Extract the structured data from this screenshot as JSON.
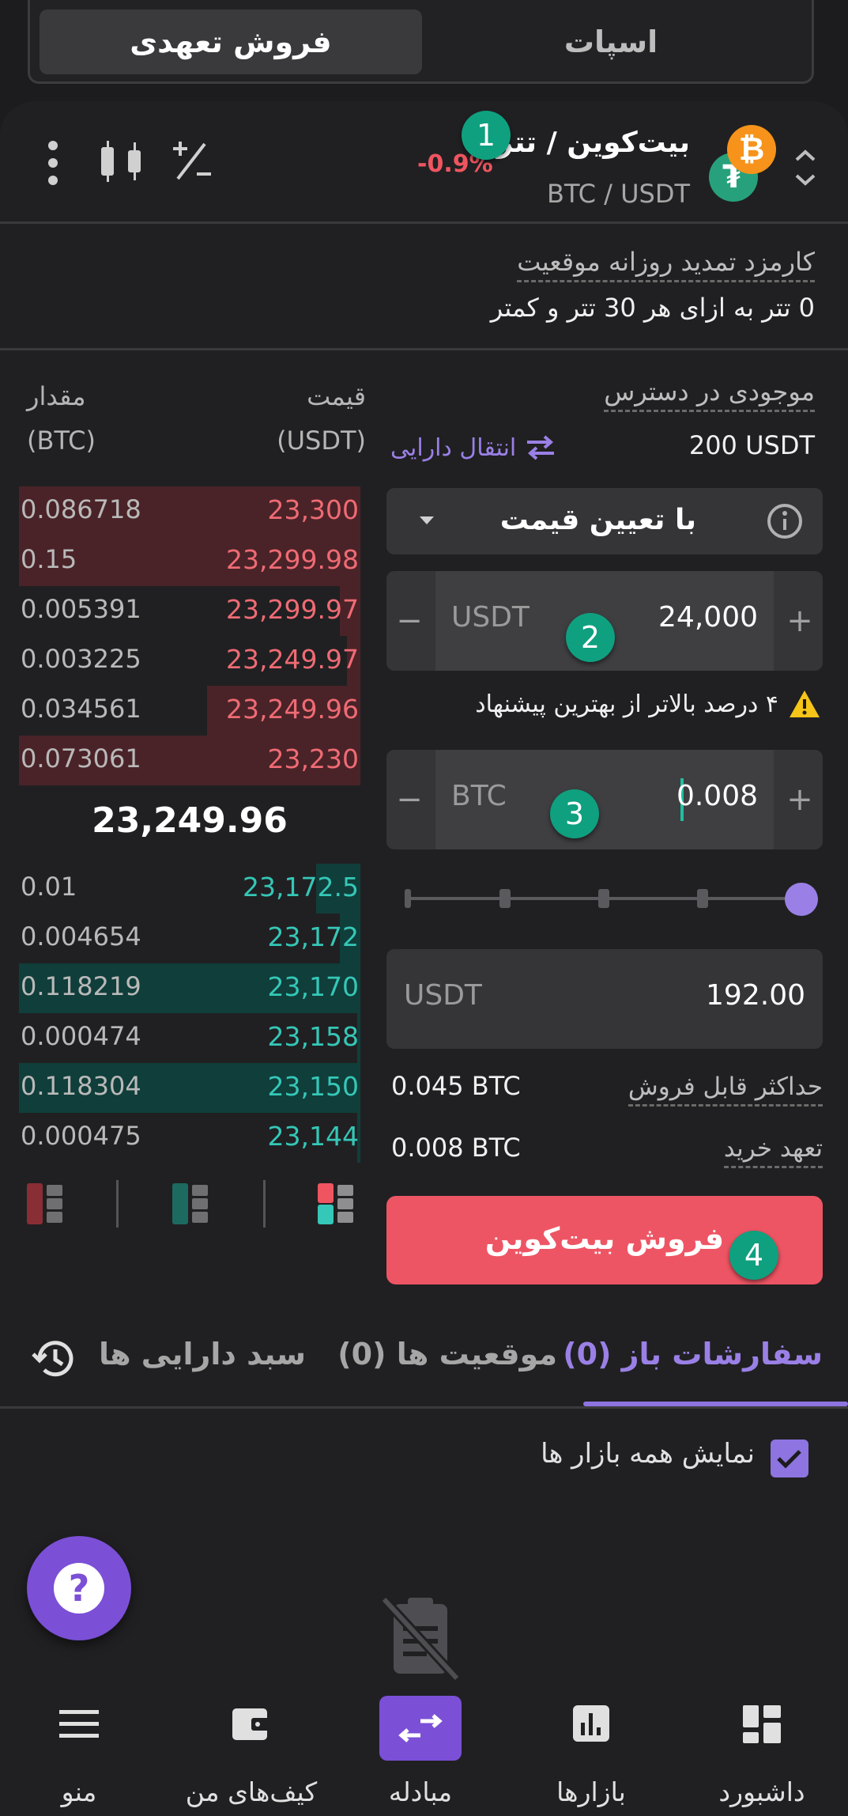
{
  "top_tabs": {
    "active": "فروش تعهدی",
    "inactive": "اسپات"
  },
  "pair": {
    "title": "بیت‌کوین / تتر",
    "subtitle": "BTC / USDT",
    "change": "-0.9%"
  },
  "badges": [
    "1",
    "2",
    "3",
    "4"
  ],
  "fee": {
    "label": "کارمزد تمدید روزانه موقعیت",
    "value": "0 تتر به ازای هر 30 تتر و کمتر"
  },
  "order_book": {
    "price_header": "قیمت",
    "price_unit": "(USDT)",
    "amount_header": "مقدار",
    "amount_unit": "(BTC)",
    "asks": [
      {
        "price": "23,300",
        "amount": "0.086718",
        "depth": 1.0
      },
      {
        "price": "23,299.98",
        "amount": "0.15",
        "depth": 1.0
      },
      {
        "price": "23,299.97",
        "amount": "0.005391",
        "depth": 0.06
      },
      {
        "price": "23,249.97",
        "amount": "0.003225",
        "depth": 0.04
      },
      {
        "price": "23,249.96",
        "amount": "0.034561",
        "depth": 0.45
      },
      {
        "price": "23,230",
        "amount": "0.073061",
        "depth": 1.0
      }
    ],
    "mid_price": "23,249.96",
    "bids": [
      {
        "price": "23,172.5",
        "amount": "0.01",
        "depth": 0.13
      },
      {
        "price": "23,172",
        "amount": "0.004654",
        "depth": 0.06
      },
      {
        "price": "23,170",
        "amount": "0.118219",
        "depth": 1.0
      },
      {
        "price": "23,158",
        "amount": "0.000474",
        "depth": 0.01
      },
      {
        "price": "23,150",
        "amount": "0.118304",
        "depth": 1.0
      },
      {
        "price": "23,144",
        "amount": "0.000475",
        "depth": 0.01
      }
    ]
  },
  "balance": {
    "label": "موجودی در دسترس",
    "value": "200 USDT",
    "transfer": "انتقال دارایی"
  },
  "order_type": {
    "label": "با تعیین قیمت"
  },
  "price_input": {
    "value": "24,000",
    "unit": "USDT",
    "minus": "−",
    "plus": "+"
  },
  "warning": "۴ درصد بالاتر از بهترین پیشنهاد",
  "amount_input": {
    "value": "0.008",
    "unit": "BTC",
    "minus": "−",
    "plus": "+"
  },
  "slider": {
    "value": 1.0
  },
  "total": {
    "value": "192.00",
    "unit": "USDT"
  },
  "max_sell": {
    "label": "حداکثر قابل فروش",
    "value": "0.045 BTC"
  },
  "buy_commit": {
    "label": "تعهد خرید",
    "value": "0.008 BTC"
  },
  "sell_button": "فروش  بیت‌کوین",
  "tabs": {
    "open_orders": "سفارشات باز (0)",
    "positions": "موقعیت ها (0)",
    "portfolio": "سبد دارایی ها"
  },
  "show_all_markets": "نمایش همه بازار ها",
  "help": "?",
  "nav": {
    "dashboard": "داشبورد",
    "markets": "بازارها",
    "exchange": "مبادله",
    "wallets": "کیف‌های من",
    "menu": "منو"
  },
  "colors": {
    "accent": "#8d74e0",
    "sell": "#ee5564",
    "ask": "#ef6b74",
    "bid": "#35c7b7",
    "badge": "#0fa07f"
  }
}
